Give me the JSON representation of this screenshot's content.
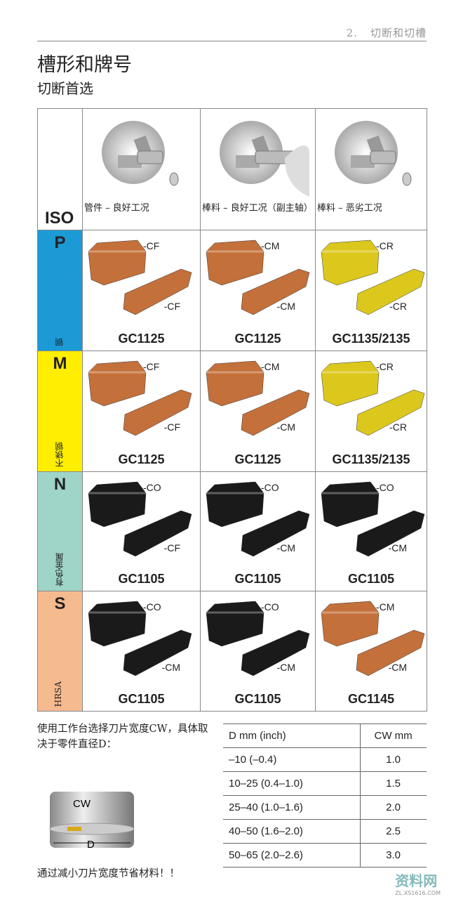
{
  "header": {
    "chapter_num": "2.",
    "chapter_title": "切断和切槽"
  },
  "title": "槽形和牌号",
  "subtitle": "切断首选",
  "table": {
    "iso_label": "ISO",
    "columns": [
      {
        "caption": "管件 – 良好工况",
        "image": "chuck-tube-icon"
      },
      {
        "caption": "棒料 – 良好工况（副主轴）",
        "image": "chuck-subspindle-icon"
      },
      {
        "caption": "棒料 – 恶劣工况",
        "image": "chuck-bar-icon"
      }
    ],
    "rows": [
      {
        "iso": "P",
        "material": "钢",
        "color": "#1b9ad6",
        "cells": [
          {
            "top": "-CF",
            "bottom": "-CF",
            "grade": "GC1125",
            "insert_color": "#c4703a"
          },
          {
            "top": "-CM",
            "bottom": "-CM",
            "grade": "GC1125",
            "insert_color": "#c4703a"
          },
          {
            "top": "-CR",
            "bottom": "-CR",
            "grade": "GC1135/2135",
            "insert_color": "#dcc81c"
          }
        ]
      },
      {
        "iso": "M",
        "material": "不锈钢",
        "color": "#ffee00",
        "cells": [
          {
            "top": "-CF",
            "bottom": "-CF",
            "grade": "GC1125",
            "insert_color": "#c4703a"
          },
          {
            "top": "-CM",
            "bottom": "-CM",
            "grade": "GC1125",
            "insert_color": "#c4703a"
          },
          {
            "top": "-CR",
            "bottom": "-CR",
            "grade": "GC1135/2135",
            "insert_color": "#dcc81c"
          }
        ]
      },
      {
        "iso": "N",
        "material": "有色金属",
        "color": "#9fd4c9",
        "cells": [
          {
            "top": "-CO",
            "bottom": "-CF",
            "grade": "GC1105",
            "insert_color": "#1a1a1a"
          },
          {
            "top": "-CO",
            "bottom": "-CM",
            "grade": "GC1105",
            "insert_color": "#1a1a1a"
          },
          {
            "top": "-CO",
            "bottom": "-CM",
            "grade": "GC1105",
            "insert_color": "#1a1a1a"
          }
        ]
      },
      {
        "iso": "S",
        "material": "HRSA",
        "color": "#f6ba8f",
        "cells": [
          {
            "top": "-CO",
            "bottom": "-CM",
            "grade": "GC1105",
            "insert_color": "#1a1a1a"
          },
          {
            "top": "-CO",
            "bottom": "-CM",
            "grade": "GC1105",
            "insert_color": "#1a1a1a"
          },
          {
            "top": "-CM",
            "bottom": "-CM",
            "grade": "GC1145",
            "insert_color": "#c4703a"
          }
        ]
      }
    ]
  },
  "width_note": "使用工作台选择刀片宽度CW，具体取决于零件直径D：",
  "diagram": {
    "cw": "CW",
    "d": "D"
  },
  "cw_table": {
    "headers": [
      "D mm (inch)",
      "CW mm"
    ],
    "rows": [
      [
        "–10 (–0.4)",
        "1.0"
      ],
      [
        "10–25 (0.4–1.0)",
        "1.5"
      ],
      [
        "25–40 (1.0–1.6)",
        "2.0"
      ],
      [
        "40–50 (1.6–2.0)",
        "2.5"
      ],
      [
        "50–65 (2.0–2.6)",
        "3.0"
      ]
    ]
  },
  "footer_note": "通过减小刀片宽度节省材料！！",
  "watermark": {
    "text": "资料网",
    "url_text": "ZL.XS1616.COM"
  }
}
